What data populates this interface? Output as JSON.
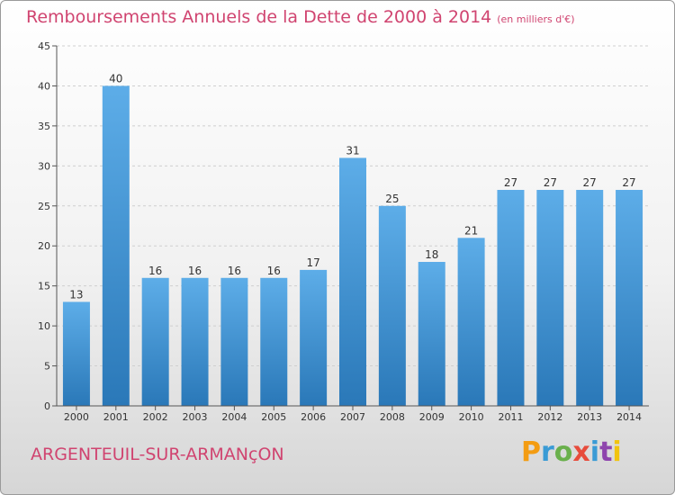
{
  "title": "Remboursements Annuels de la Dette de 2000 à 2014",
  "unit": "(en milliers d'€)",
  "place": "ARGENTEUIL-SUR-ARMANçON",
  "logo": {
    "text": "Proxiti",
    "letter_colors": [
      "#f39c12",
      "#3a9bd5",
      "#6ab04c",
      "#e74c3c",
      "#3a9bd5",
      "#8e44ad",
      "#f1c40f"
    ]
  },
  "colors": {
    "bar_top": "#5dade8",
    "bar_bottom": "#2a78b8",
    "title": "#d04470",
    "grid": "#cfcfcf",
    "axis": "#555555"
  },
  "chart_data": {
    "type": "bar",
    "categories": [
      "2000",
      "2001",
      "2002",
      "2003",
      "2004",
      "2005",
      "2006",
      "2007",
      "2008",
      "2009",
      "2010",
      "2011",
      "2012",
      "2013",
      "2014"
    ],
    "values": [
      13,
      40,
      16,
      16,
      16,
      16,
      17,
      31,
      25,
      18,
      21,
      27,
      27,
      27,
      27
    ],
    "title": "Remboursements Annuels de la Dette de 2000 à 2014",
    "xlabel": "",
    "ylabel": "",
    "ylim": [
      0,
      45
    ],
    "yticks": [
      0,
      5,
      10,
      15,
      20,
      25,
      30,
      35,
      40,
      45
    ],
    "grid": true,
    "legend": "none"
  }
}
